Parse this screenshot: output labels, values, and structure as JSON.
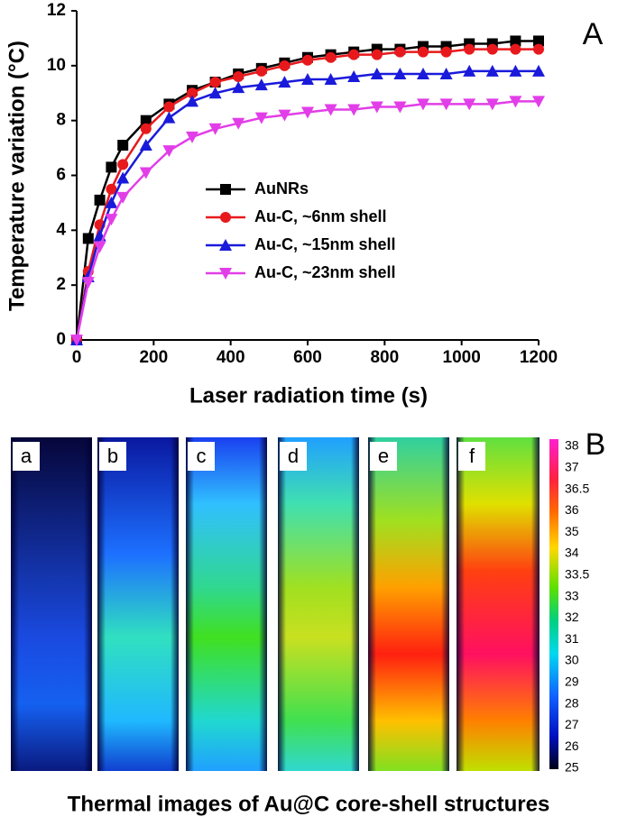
{
  "chart_data": {
    "type": "line",
    "x_label": "Laser radiation time (s)",
    "y_label": "Temperature variation (°C)",
    "panel_label": "A",
    "x": [
      0,
      30,
      60,
      90,
      120,
      180,
      240,
      300,
      360,
      420,
      480,
      540,
      600,
      660,
      720,
      780,
      840,
      900,
      960,
      1020,
      1080,
      1140,
      1200
    ],
    "series": [
      {
        "name": "AuNRs",
        "color": "#000000",
        "marker": "square",
        "values": [
          0,
          3.7,
          5.1,
          6.3,
          7.1,
          8.0,
          8.6,
          9.1,
          9.4,
          9.7,
          9.9,
          10.1,
          10.3,
          10.4,
          10.5,
          10.6,
          10.6,
          10.7,
          10.7,
          10.8,
          10.8,
          10.9,
          10.9
        ]
      },
      {
        "name": "Au-C, ~6nm shell",
        "color": "#e8191c",
        "marker": "circle",
        "values": [
          0,
          2.5,
          4.2,
          5.5,
          6.4,
          7.7,
          8.5,
          9.0,
          9.4,
          9.6,
          9.8,
          10.0,
          10.2,
          10.3,
          10.4,
          10.4,
          10.5,
          10.5,
          10.5,
          10.6,
          10.6,
          10.6,
          10.6
        ]
      },
      {
        "name": "Au-C, ~15nm shell",
        "color": "#1a1adb",
        "marker": "triangle-up",
        "values": [
          0,
          2.3,
          3.8,
          5.0,
          5.9,
          7.1,
          8.1,
          8.7,
          9.0,
          9.2,
          9.3,
          9.4,
          9.5,
          9.5,
          9.6,
          9.7,
          9.7,
          9.7,
          9.7,
          9.8,
          9.8,
          9.8,
          9.8
        ]
      },
      {
        "name": "Au-C, ~23nm shell",
        "color": "#e23ee8",
        "marker": "triangle-down",
        "values": [
          0,
          2.1,
          3.4,
          4.4,
          5.2,
          6.1,
          6.9,
          7.4,
          7.7,
          7.9,
          8.1,
          8.2,
          8.3,
          8.4,
          8.4,
          8.5,
          8.5,
          8.6,
          8.6,
          8.6,
          8.6,
          8.7,
          8.7
        ]
      }
    ],
    "xlim": [
      0,
      1200
    ],
    "xticks": [
      0,
      200,
      400,
      600,
      800,
      1000,
      1200
    ],
    "ylim": [
      0,
      12
    ],
    "yticks": [
      0,
      2,
      4,
      6,
      8,
      10,
      12
    ],
    "grid": false
  },
  "thermal_panel": {
    "panel_label": "B",
    "image_labels": [
      "a",
      "b",
      "c",
      "d",
      "e",
      "f"
    ],
    "colorbar_ticks": [
      38,
      37,
      36.5,
      36,
      35,
      34,
      33.5,
      33,
      32,
      31,
      30,
      29,
      28,
      27,
      26,
      25
    ],
    "caption": "Thermal images of Au@C core-shell structures"
  }
}
